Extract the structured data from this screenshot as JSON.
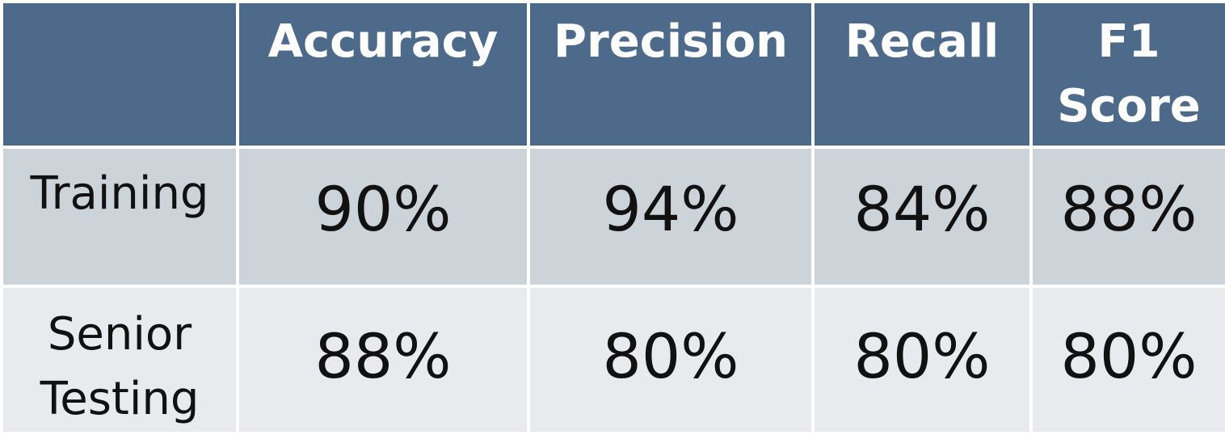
{
  "chart_data": {
    "type": "table",
    "columns": [
      "",
      "Accuracy",
      "Precision",
      "Recall",
      "F1 Score"
    ],
    "rows": [
      {
        "label": "Training",
        "values": [
          "90%",
          "94%",
          "84%",
          "88%"
        ]
      },
      {
        "label": "Senior Testing",
        "values": [
          "88%",
          "80%",
          "80%",
          "80%"
        ]
      }
    ],
    "numeric": [
      [
        90,
        94,
        84,
        88
      ],
      [
        88,
        80,
        80,
        80
      ]
    ]
  },
  "header": {
    "accuracy": "Accuracy",
    "precision": "Precision",
    "recall": "Recall",
    "f1_line1": "F1",
    "f1_line2": "Score"
  },
  "rows": {
    "training": {
      "label": "Training",
      "accuracy": "90%",
      "precision": "94%",
      "recall": "84%",
      "f1": "88%"
    },
    "senior_testing": {
      "label_line1": "Senior",
      "label_line2": "Testing",
      "accuracy": "88%",
      "precision": "80%",
      "recall": "80%",
      "f1": "80%"
    }
  },
  "colors": {
    "header_bg": "#4d6a8a",
    "row1_bg": "#ccd3d9",
    "row2_bg": "#e8eaee",
    "header_text": "#ffffff",
    "body_text": "#111111"
  }
}
